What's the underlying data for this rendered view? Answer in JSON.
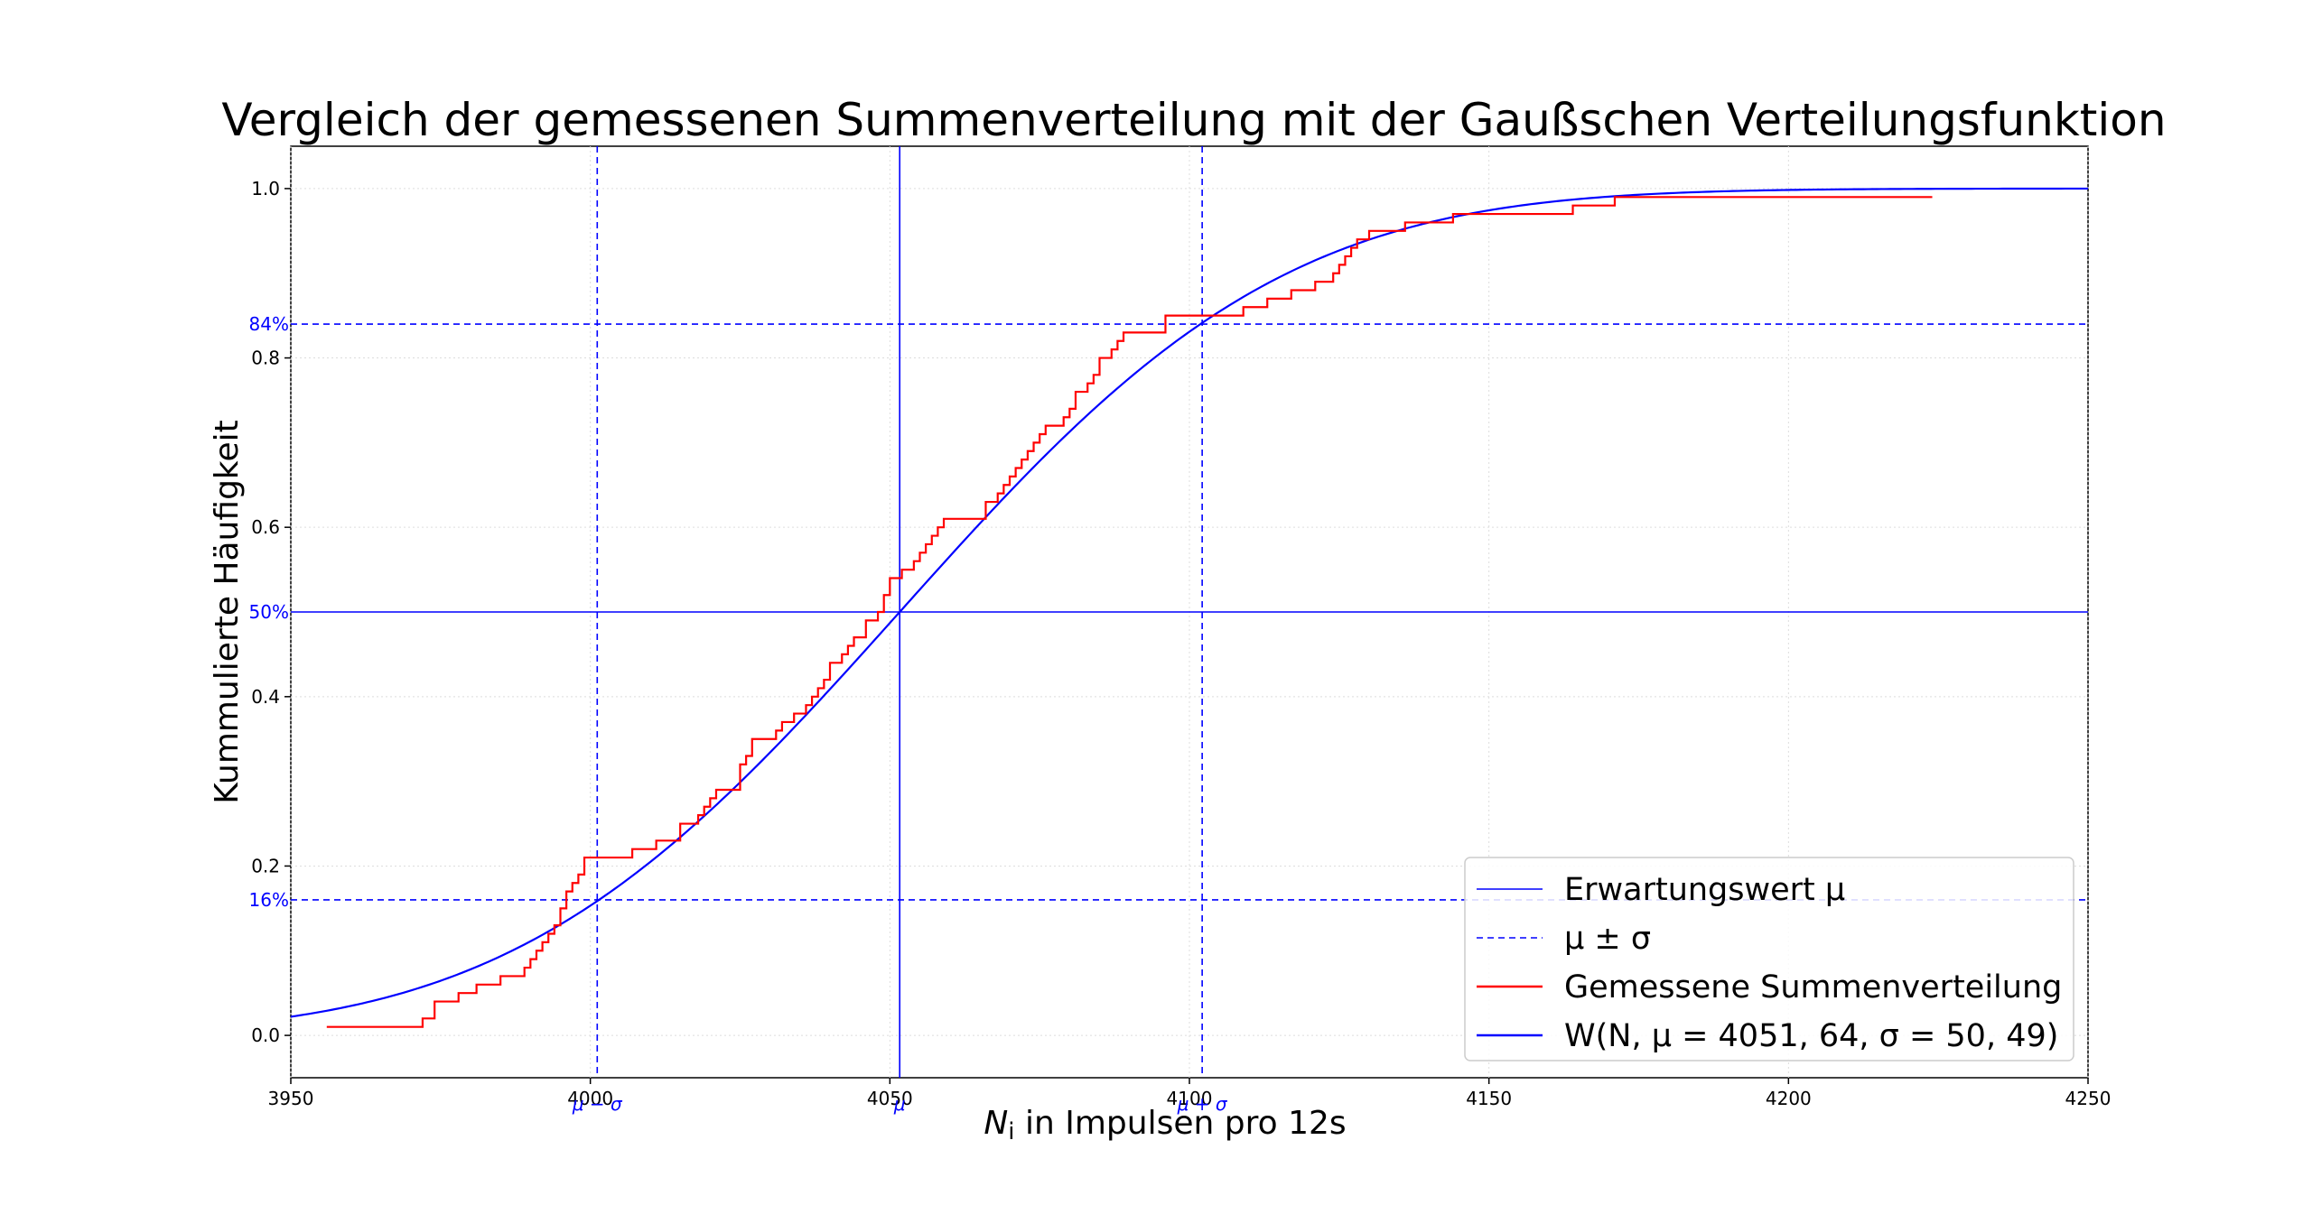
{
  "chart_data": {
    "type": "line",
    "title": "Vergleich der gemessenen Summenverteilung mit der Gaußschen Verteilungsfunktion",
    "xlabel": "N_i in Impulsen pro 12s",
    "xlabel_parts": {
      "symbol": "N",
      "subscript": "i",
      "rest": " in Impulsen pro 12s"
    },
    "ylabel": "Kummulierte Häufigkeit",
    "xlim": [
      3950,
      4250
    ],
    "ylim": [
      -0.05,
      1.05
    ],
    "x_ticks": [
      3950,
      4000,
      4050,
      4100,
      4150,
      4200,
      4250
    ],
    "x_tick_labels": [
      "3950",
      "4000",
      "4050",
      "4100",
      "4150",
      "4200",
      "4250"
    ],
    "y_ticks": [
      0.0,
      0.2,
      0.4,
      0.6,
      0.8,
      1.0
    ],
    "y_tick_labels": [
      "0.0",
      "0.2",
      "0.4",
      "0.6",
      "0.8",
      "1.0"
    ],
    "grid": true,
    "legend_position": "lower-right",
    "mu": 4051.64,
    "sigma": 50.49,
    "reference_lines": {
      "vertical": [
        {
          "x": 4001.15,
          "label": "μ − σ",
          "style": "dashed"
        },
        {
          "x": 4051.64,
          "label": "μ",
          "style": "solid"
        },
        {
          "x": 4102.13,
          "label": "μ + σ",
          "style": "dashed"
        }
      ],
      "horizontal": [
        {
          "y": 0.16,
          "label": "16%",
          "style": "dashed"
        },
        {
          "y": 0.5,
          "label": "50%",
          "style": "solid"
        },
        {
          "y": 0.84,
          "label": "84%",
          "style": "dashed"
        }
      ]
    },
    "series": [
      {
        "name": "Gemessene Summenverteilung",
        "kind": "step",
        "color": "#ff0000",
        "x": [
          3956,
          3972,
          3974,
          3978,
          3981,
          3985,
          3989,
          3990,
          3991,
          3992,
          3993,
          3994,
          3995,
          3996,
          3997,
          3998,
          3999,
          4004,
          4007,
          4011,
          4015,
          4018,
          4019,
          4020,
          4021,
          4023,
          4025,
          4026,
          4027,
          4030,
          4031,
          4032,
          4034,
          4035,
          4036,
          4037,
          4038,
          4039,
          4040,
          4041,
          4042,
          4043,
          4044,
          4045,
          4046,
          4047,
          4048,
          4049,
          4050,
          4051,
          4052,
          4053,
          4054,
          4055,
          4056,
          4057,
          4058,
          4059,
          4060,
          4066,
          4067,
          4068,
          4069,
          4070,
          4071,
          4072,
          4073,
          4074,
          4075,
          4076,
          4077,
          4079,
          4080,
          4081,
          4082,
          4083,
          4084,
          4085,
          4086,
          4087,
          4088,
          4089,
          4090,
          4092,
          4094,
          4096,
          4097,
          4098,
          4104,
          4109,
          4113,
          4117,
          4121,
          4122,
          4124,
          4125,
          4126,
          4127,
          4128,
          4129,
          4130,
          4132,
          4136,
          4141,
          4144,
          4158,
          4164,
          4171,
          4224
        ],
        "y": [
          0.01,
          0.02,
          0.04,
          0.05,
          0.06,
          0.07,
          0.08,
          0.09,
          0.1,
          0.11,
          0.12,
          0.13,
          0.15,
          0.17,
          0.18,
          0.19,
          0.21,
          0.21,
          0.22,
          0.23,
          0.25,
          0.26,
          0.27,
          0.28,
          0.29,
          0.29,
          0.32,
          0.33,
          0.35,
          0.35,
          0.36,
          0.37,
          0.38,
          0.38,
          0.39,
          0.4,
          0.41,
          0.42,
          0.44,
          0.44,
          0.45,
          0.46,
          0.47,
          0.47,
          0.49,
          0.49,
          0.5,
          0.52,
          0.54,
          0.54,
          0.55,
          0.55,
          0.56,
          0.57,
          0.58,
          0.59,
          0.6,
          0.61,
          0.61,
          0.63,
          0.63,
          0.64,
          0.65,
          0.66,
          0.67,
          0.68,
          0.69,
          0.7,
          0.71,
          0.72,
          0.72,
          0.73,
          0.74,
          0.76,
          0.76,
          0.77,
          0.78,
          0.8,
          0.8,
          0.81,
          0.82,
          0.83,
          0.83,
          0.83,
          0.83,
          0.85,
          0.85,
          0.85,
          0.85,
          0.86,
          0.87,
          0.88,
          0.89,
          0.89,
          0.9,
          0.91,
          0.92,
          0.93,
          0.94,
          0.94,
          0.95,
          0.95,
          0.96,
          0.96,
          0.97,
          0.97,
          0.98,
          0.99,
          0.99
        ]
      },
      {
        "name": "W(N, μ = 4051, 64, σ = 50, 49)",
        "kind": "normal_cdf",
        "color": "#0000ff",
        "mu": 4051.64,
        "sigma": 50.49,
        "x_range": [
          3950,
          4250
        ]
      }
    ],
    "legend": [
      {
        "label": "Erwartungswert μ",
        "style": "solid",
        "color": "#0000ff",
        "width": 1.5
      },
      {
        "label": "μ ± σ",
        "style": "dashed",
        "color": "#0000ff",
        "width": 1.5
      },
      {
        "label": "Gemessene Summenverteilung",
        "style": "solid",
        "color": "#ff0000",
        "width": 2.5
      },
      {
        "label": "W(N, μ = 4051, 64, σ = 50, 49)",
        "style": "solid",
        "color": "#0000ff",
        "width": 2.5
      }
    ]
  }
}
